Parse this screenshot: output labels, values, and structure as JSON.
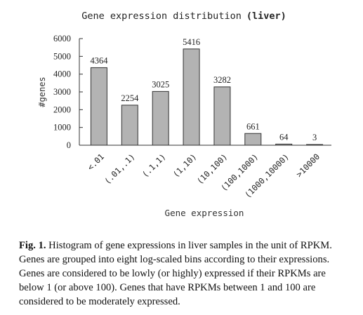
{
  "chart_data": {
    "type": "bar",
    "title": "Gene expression distribution",
    "title_emphasis": "(liver)",
    "xlabel": "Gene expression",
    "ylabel": "#genes",
    "categories": [
      "<.01",
      "(.01,.1)",
      "(.1,1)",
      "(1,10)",
      "(10,100)",
      "(100,1000)",
      "(1000,10000)",
      ">10000"
    ],
    "values": [
      4364,
      2254,
      3025,
      5416,
      3282,
      661,
      64,
      3
    ],
    "data_labels": [
      "4364",
      "2254",
      "3025",
      "5416",
      "3282",
      "661",
      "64",
      "3"
    ],
    "ylim": [
      0,
      6000
    ],
    "yticks": [
      0,
      1000,
      2000,
      3000,
      4000,
      5000,
      6000
    ],
    "grid": false,
    "legend": "none",
    "bar_color": "#b3b3b3"
  },
  "caption": {
    "label": "Fig. 1.",
    "text": "Histogram of gene expressions in liver samples in the unit of RPKM. Genes are grouped into eight log-scaled bins according to their expressions. Genes are considered to be lowly (or highly) expressed if their RPKMs are below 1 (or above 100). Genes that have RPKMs between 1 and 100 are considered to be moderately expressed."
  }
}
